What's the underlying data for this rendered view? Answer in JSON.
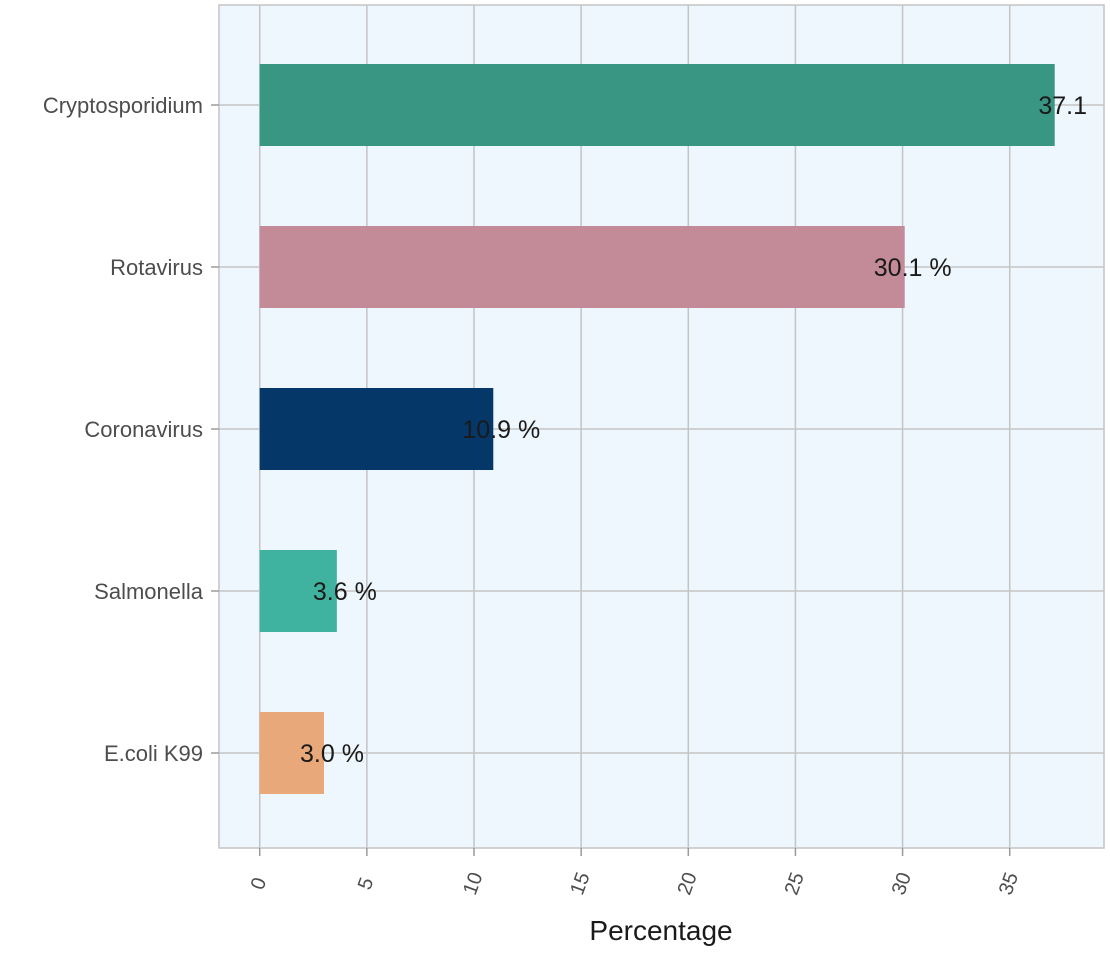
{
  "chart_data": {
    "type": "bar",
    "orientation": "horizontal",
    "categories": [
      "Cryptosporidium",
      "Rotavirus",
      "Coronavirus",
      "Salmonella",
      "E.coli K99"
    ],
    "values": [
      37.1,
      30.1,
      10.9,
      3.6,
      3.0
    ],
    "data_labels": [
      "37.1",
      "30.1 %",
      "10.9 %",
      "3.6 %",
      "3.0 %"
    ],
    "colors": [
      "#389683",
      "#c38a98",
      "#053868",
      "#40b3a0",
      "#e8a87a"
    ],
    "xlabel": "Percentage",
    "ylabel": "",
    "xlim": [
      -1.9,
      39.4
    ],
    "x_ticks": [
      0,
      5,
      10,
      15,
      20,
      25,
      30,
      35
    ],
    "x_tick_labels": [
      "0",
      "5",
      "10",
      "15",
      "20",
      "25",
      "30",
      "35"
    ],
    "grid": true,
    "panel_background": "#eef6fe",
    "grid_color": "#c4c4c4"
  }
}
